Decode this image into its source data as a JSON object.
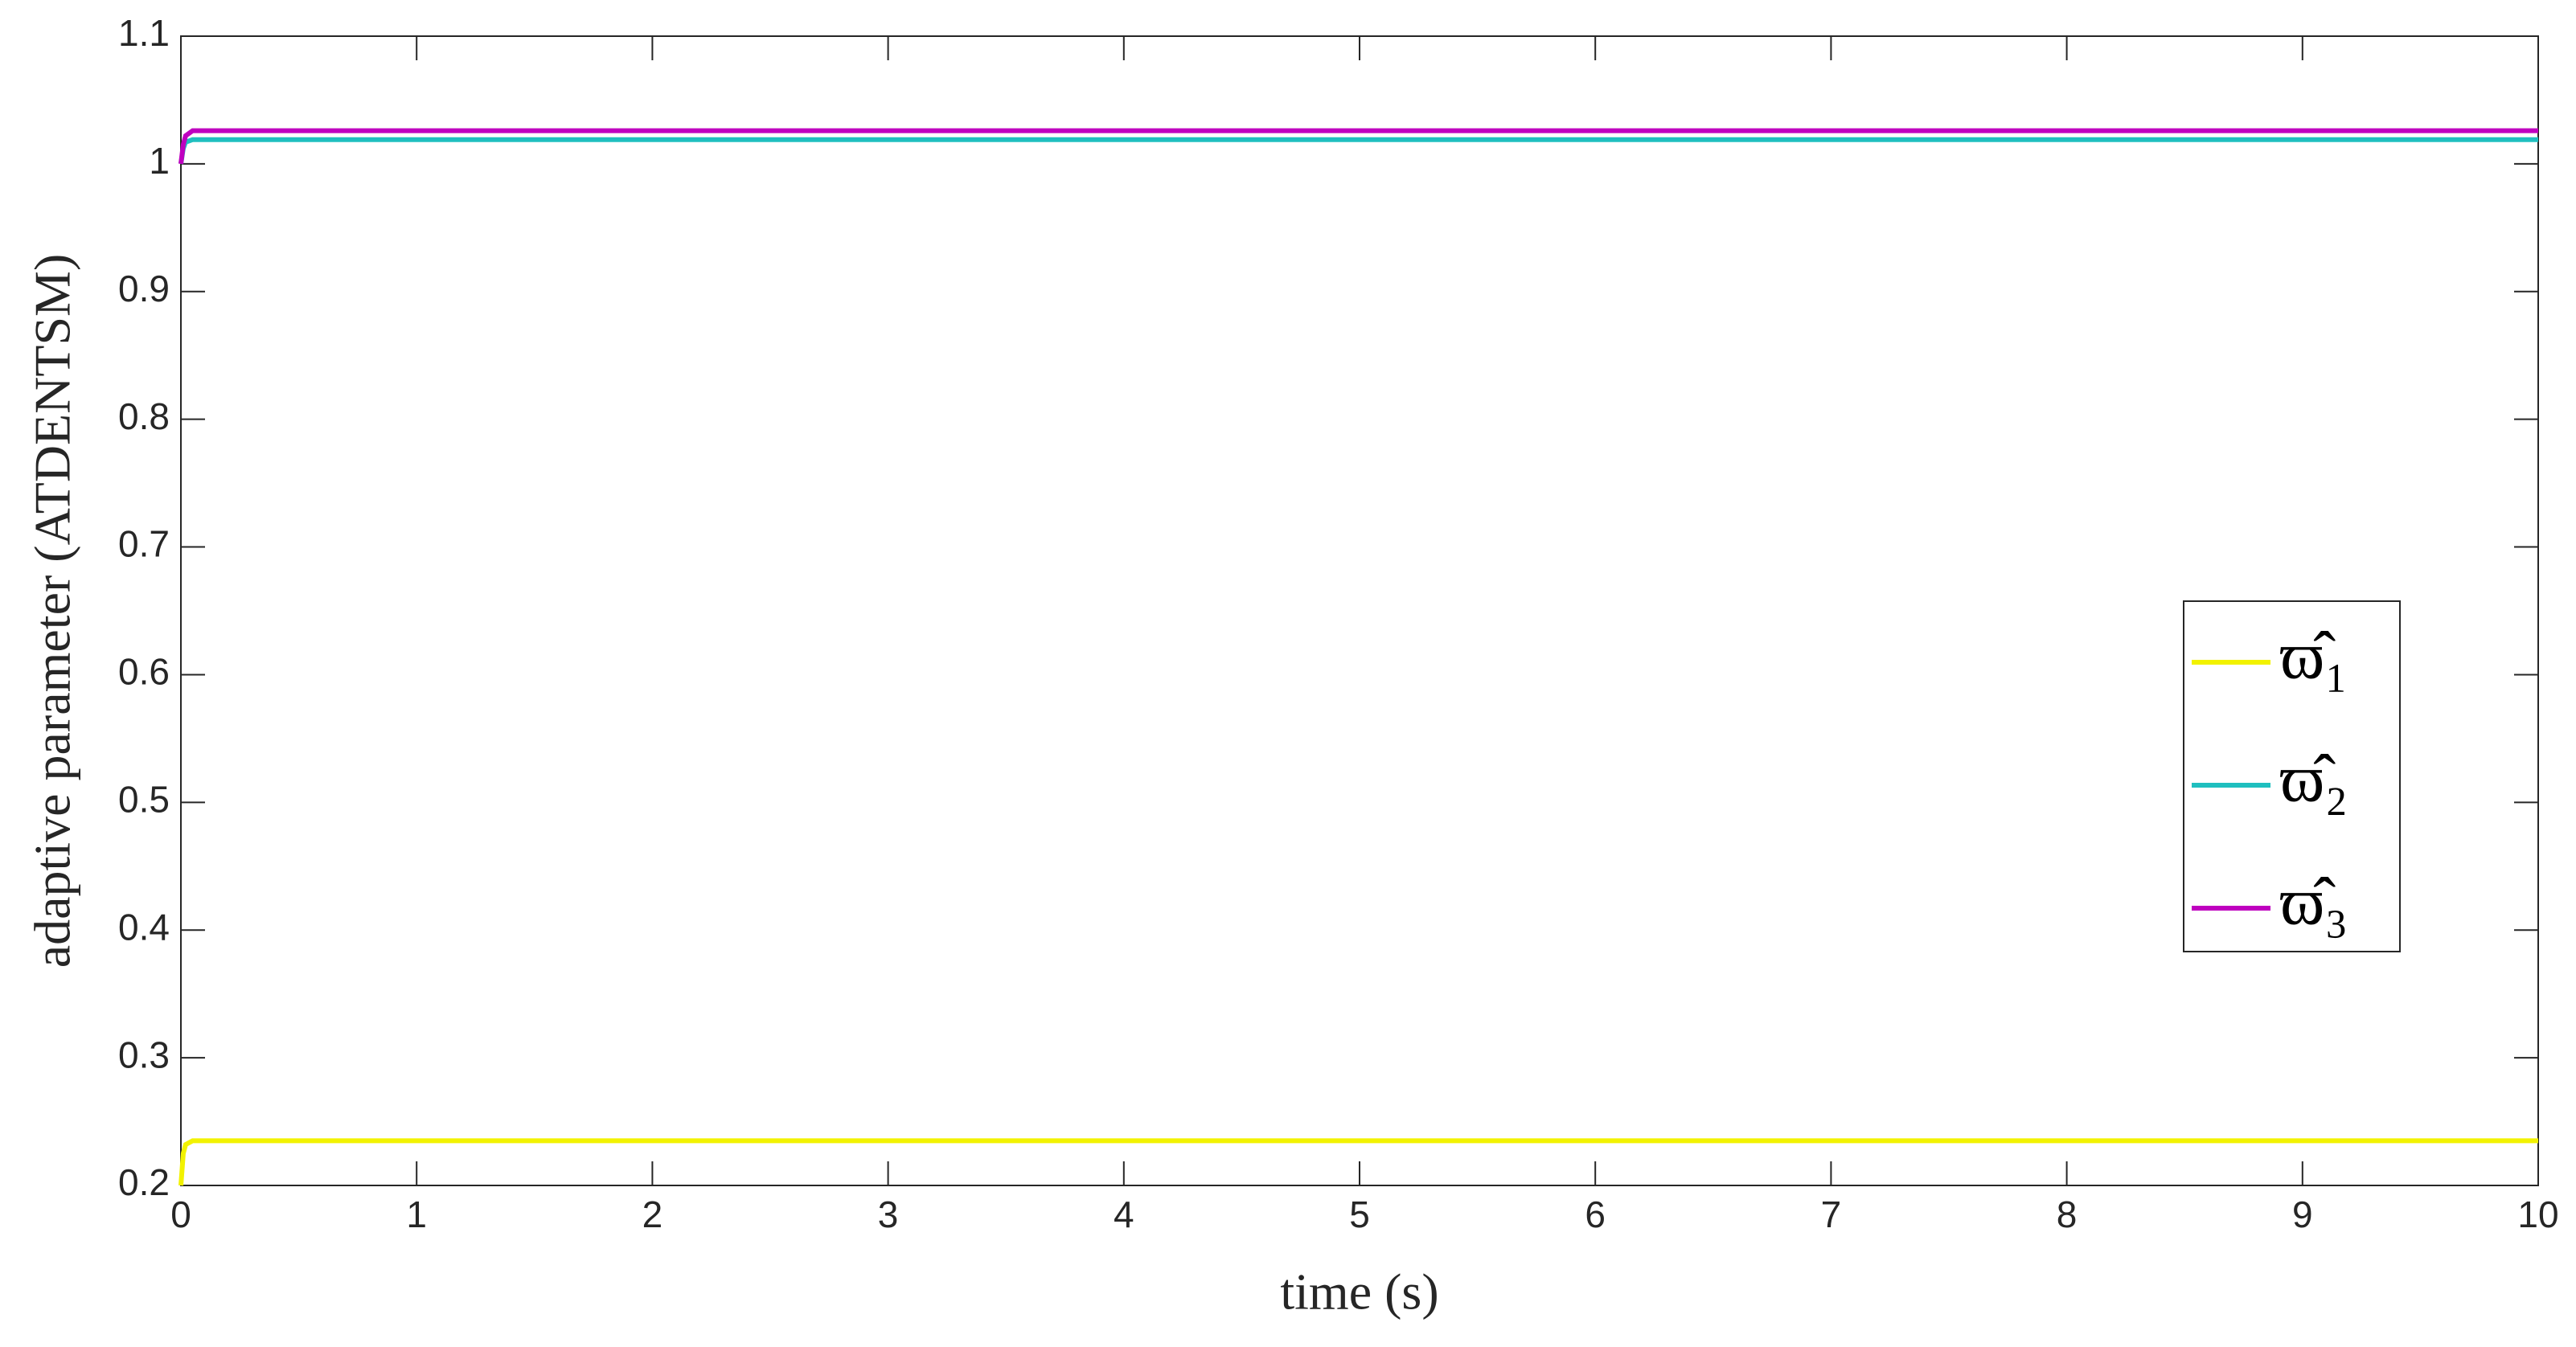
{
  "chart_data": {
    "type": "line",
    "x_label": "time (s)",
    "y_label": "adaptive parameter (ATDENTSM)",
    "x": [
      0,
      0.01,
      0.02,
      0.05,
      10
    ],
    "series": [
      {
        "name": "ϖ̂₁",
        "color": "#f2f200",
        "values": [
          0.2,
          0.225,
          0.232,
          0.235,
          0.235
        ]
      },
      {
        "name": "ϖ̂₂",
        "color": "#1fbfbf",
        "values": [
          1.0,
          1.012,
          1.017,
          1.019,
          1.019
        ]
      },
      {
        "name": "ϖ̂₃",
        "color": "#bf00bf",
        "values": [
          1.0,
          1.015,
          1.022,
          1.026,
          1.026
        ]
      }
    ],
    "xlim": [
      0,
      10
    ],
    "xticks": [
      0,
      1,
      2,
      3,
      4,
      5,
      6,
      7,
      8,
      9,
      10
    ],
    "ylim": [
      0.2,
      1.1
    ],
    "yticks": [
      0.2,
      0.3,
      0.4,
      0.5,
      0.6,
      0.7,
      0.8,
      0.9,
      1,
      1.1
    ],
    "grid": false,
    "legend": "right"
  }
}
